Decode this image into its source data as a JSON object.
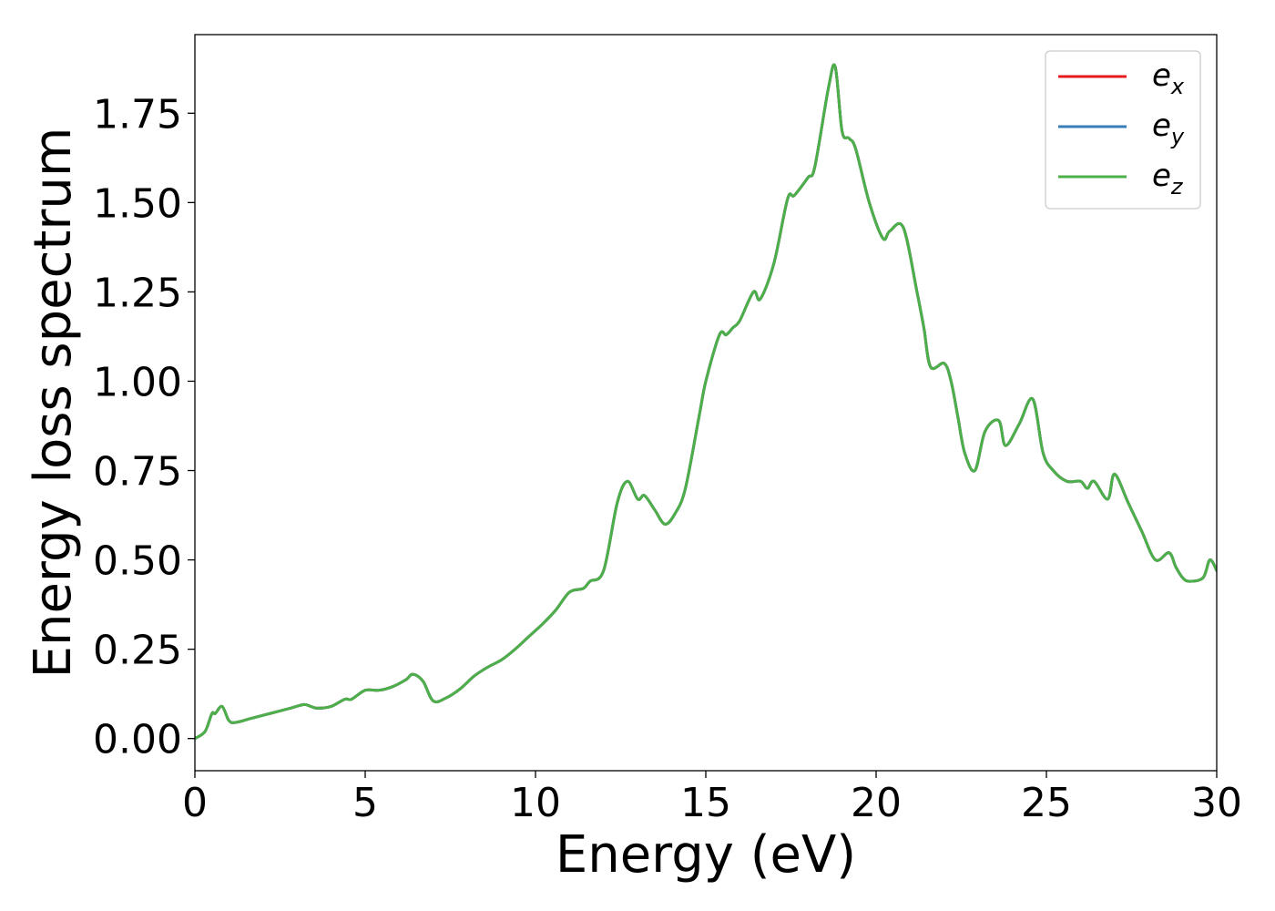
{
  "chart_data": {
    "type": "line",
    "title": "",
    "xlabel": "Energy (eV)",
    "ylabel": "Energy loss spectrum",
    "xlim": [
      0,
      30
    ],
    "ylim": [
      -0.09,
      1.97
    ],
    "x_ticks": [
      0,
      5,
      10,
      15,
      20,
      25,
      30
    ],
    "x_tick_labels": [
      "0",
      "5",
      "10",
      "15",
      "20",
      "25",
      "30"
    ],
    "y_ticks": [
      0.0,
      0.25,
      0.5,
      0.75,
      1.0,
      1.25,
      1.5,
      1.75
    ],
    "y_tick_labels": [
      "0.00",
      "0.25",
      "0.50",
      "0.75",
      "1.00",
      "1.25",
      "1.50",
      "1.75"
    ],
    "grid": false,
    "legend_position": "top-right",
    "series": [
      {
        "name": "e_x",
        "base": "e",
        "sub": "x",
        "color": "#e41a1c",
        "x": [
          0,
          0.3,
          0.5,
          0.6,
          0.8,
          1.0,
          1.2,
          1.6,
          2.0,
          2.4,
          2.8,
          3.2,
          3.4,
          3.6,
          4.0,
          4.4,
          4.6,
          5.0,
          5.4,
          5.8,
          6.2,
          6.4,
          6.7,
          7.0,
          7.4,
          7.8,
          8.2,
          8.6,
          9.0,
          9.4,
          9.8,
          10.2,
          10.6,
          11.0,
          11.4,
          11.6,
          12.0,
          12.4,
          12.7,
          13.0,
          13.2,
          13.5,
          13.8,
          14.1,
          14.4,
          14.8,
          15.0,
          15.4,
          15.6,
          15.8,
          16.0,
          16.4,
          16.6,
          17.0,
          17.4,
          17.6,
          18.0,
          18.2,
          18.6,
          18.8,
          19.0,
          19.2,
          19.4,
          19.8,
          20.2,
          20.4,
          20.8,
          21.2,
          21.4,
          21.6,
          22.0,
          22.2,
          22.4,
          22.6,
          22.9,
          23.2,
          23.6,
          23.8,
          24.2,
          24.6,
          24.9,
          25.2,
          25.6,
          26.0,
          26.2,
          26.4,
          26.8,
          27.0,
          27.4,
          27.8,
          28.2,
          28.6,
          28.8,
          29.0,
          29.2,
          29.6,
          29.8,
          30.0
        ],
        "y": [
          0.0,
          0.02,
          0.07,
          0.07,
          0.09,
          0.05,
          0.045,
          0.055,
          0.065,
          0.075,
          0.085,
          0.095,
          0.09,
          0.085,
          0.09,
          0.11,
          0.11,
          0.135,
          0.135,
          0.145,
          0.165,
          0.18,
          0.16,
          0.105,
          0.115,
          0.14,
          0.175,
          0.2,
          0.22,
          0.25,
          0.285,
          0.32,
          0.36,
          0.41,
          0.42,
          0.44,
          0.47,
          0.66,
          0.72,
          0.67,
          0.68,
          0.64,
          0.6,
          0.63,
          0.7,
          0.9,
          1.0,
          1.13,
          1.13,
          1.15,
          1.17,
          1.25,
          1.23,
          1.33,
          1.51,
          1.52,
          1.57,
          1.6,
          1.82,
          1.88,
          1.7,
          1.68,
          1.65,
          1.5,
          1.4,
          1.42,
          1.43,
          1.25,
          1.15,
          1.04,
          1.05,
          1.0,
          0.9,
          0.8,
          0.75,
          0.86,
          0.89,
          0.82,
          0.88,
          0.95,
          0.8,
          0.75,
          0.72,
          0.72,
          0.7,
          0.72,
          0.67,
          0.74,
          0.66,
          0.58,
          0.5,
          0.52,
          0.48,
          0.45,
          0.44,
          0.45,
          0.5,
          0.47
        ]
      },
      {
        "name": "e_y",
        "base": "e",
        "sub": "y",
        "color": "#377eb8",
        "x": [
          0,
          0.3,
          0.5,
          0.6,
          0.8,
          1.0,
          1.2,
          1.6,
          2.0,
          2.4,
          2.8,
          3.2,
          3.4,
          3.6,
          4.0,
          4.4,
          4.6,
          5.0,
          5.4,
          5.8,
          6.2,
          6.4,
          6.7,
          7.0,
          7.4,
          7.8,
          8.2,
          8.6,
          9.0,
          9.4,
          9.8,
          10.2,
          10.6,
          11.0,
          11.4,
          11.6,
          12.0,
          12.4,
          12.7,
          13.0,
          13.2,
          13.5,
          13.8,
          14.1,
          14.4,
          14.8,
          15.0,
          15.4,
          15.6,
          15.8,
          16.0,
          16.4,
          16.6,
          17.0,
          17.4,
          17.6,
          18.0,
          18.2,
          18.6,
          18.8,
          19.0,
          19.2,
          19.4,
          19.8,
          20.2,
          20.4,
          20.8,
          21.2,
          21.4,
          21.6,
          22.0,
          22.2,
          22.4,
          22.6,
          22.9,
          23.2,
          23.6,
          23.8,
          24.2,
          24.6,
          24.9,
          25.2,
          25.6,
          26.0,
          26.2,
          26.4,
          26.8,
          27.0,
          27.4,
          27.8,
          28.2,
          28.6,
          28.8,
          29.0,
          29.2,
          29.6,
          29.8,
          30.0
        ],
        "y": [
          0.0,
          0.02,
          0.07,
          0.07,
          0.09,
          0.05,
          0.045,
          0.055,
          0.065,
          0.075,
          0.085,
          0.095,
          0.09,
          0.085,
          0.09,
          0.11,
          0.11,
          0.135,
          0.135,
          0.145,
          0.165,
          0.18,
          0.16,
          0.105,
          0.115,
          0.14,
          0.175,
          0.2,
          0.22,
          0.25,
          0.285,
          0.32,
          0.36,
          0.41,
          0.42,
          0.44,
          0.47,
          0.66,
          0.72,
          0.67,
          0.68,
          0.64,
          0.6,
          0.63,
          0.7,
          0.9,
          1.0,
          1.13,
          1.13,
          1.15,
          1.17,
          1.25,
          1.23,
          1.33,
          1.51,
          1.52,
          1.57,
          1.6,
          1.82,
          1.88,
          1.7,
          1.68,
          1.65,
          1.5,
          1.4,
          1.42,
          1.43,
          1.25,
          1.15,
          1.04,
          1.05,
          1.0,
          0.9,
          0.8,
          0.75,
          0.86,
          0.89,
          0.82,
          0.88,
          0.95,
          0.8,
          0.75,
          0.72,
          0.72,
          0.7,
          0.72,
          0.67,
          0.74,
          0.66,
          0.58,
          0.5,
          0.52,
          0.48,
          0.45,
          0.44,
          0.45,
          0.5,
          0.47
        ]
      },
      {
        "name": "e_z",
        "base": "e",
        "sub": "z",
        "color": "#4daf4a",
        "x": [
          0,
          0.3,
          0.5,
          0.6,
          0.8,
          1.0,
          1.2,
          1.6,
          2.0,
          2.4,
          2.8,
          3.2,
          3.4,
          3.6,
          4.0,
          4.4,
          4.6,
          5.0,
          5.4,
          5.8,
          6.2,
          6.4,
          6.7,
          7.0,
          7.4,
          7.8,
          8.2,
          8.6,
          9.0,
          9.4,
          9.8,
          10.2,
          10.6,
          11.0,
          11.4,
          11.6,
          12.0,
          12.4,
          12.7,
          13.0,
          13.2,
          13.5,
          13.8,
          14.1,
          14.4,
          14.8,
          15.0,
          15.4,
          15.6,
          15.8,
          16.0,
          16.4,
          16.6,
          17.0,
          17.4,
          17.6,
          18.0,
          18.2,
          18.6,
          18.8,
          19.0,
          19.2,
          19.4,
          19.8,
          20.2,
          20.4,
          20.8,
          21.2,
          21.4,
          21.6,
          22.0,
          22.2,
          22.4,
          22.6,
          22.9,
          23.2,
          23.6,
          23.8,
          24.2,
          24.6,
          24.9,
          25.2,
          25.6,
          26.0,
          26.2,
          26.4,
          26.8,
          27.0,
          27.4,
          27.8,
          28.2,
          28.6,
          28.8,
          29.0,
          29.2,
          29.6,
          29.8,
          30.0
        ],
        "y": [
          0.0,
          0.02,
          0.07,
          0.07,
          0.09,
          0.05,
          0.045,
          0.055,
          0.065,
          0.075,
          0.085,
          0.095,
          0.09,
          0.085,
          0.09,
          0.11,
          0.11,
          0.135,
          0.135,
          0.145,
          0.165,
          0.18,
          0.16,
          0.105,
          0.115,
          0.14,
          0.175,
          0.2,
          0.22,
          0.25,
          0.285,
          0.32,
          0.36,
          0.41,
          0.42,
          0.44,
          0.47,
          0.66,
          0.72,
          0.67,
          0.68,
          0.64,
          0.6,
          0.63,
          0.7,
          0.9,
          1.0,
          1.13,
          1.13,
          1.15,
          1.17,
          1.25,
          1.23,
          1.33,
          1.51,
          1.52,
          1.57,
          1.6,
          1.82,
          1.88,
          1.7,
          1.68,
          1.65,
          1.5,
          1.4,
          1.42,
          1.43,
          1.25,
          1.15,
          1.04,
          1.05,
          1.0,
          0.9,
          0.8,
          0.75,
          0.86,
          0.89,
          0.82,
          0.88,
          0.95,
          0.8,
          0.75,
          0.72,
          0.72,
          0.7,
          0.72,
          0.67,
          0.74,
          0.66,
          0.58,
          0.5,
          0.52,
          0.48,
          0.45,
          0.44,
          0.45,
          0.5,
          0.47
        ]
      }
    ]
  }
}
